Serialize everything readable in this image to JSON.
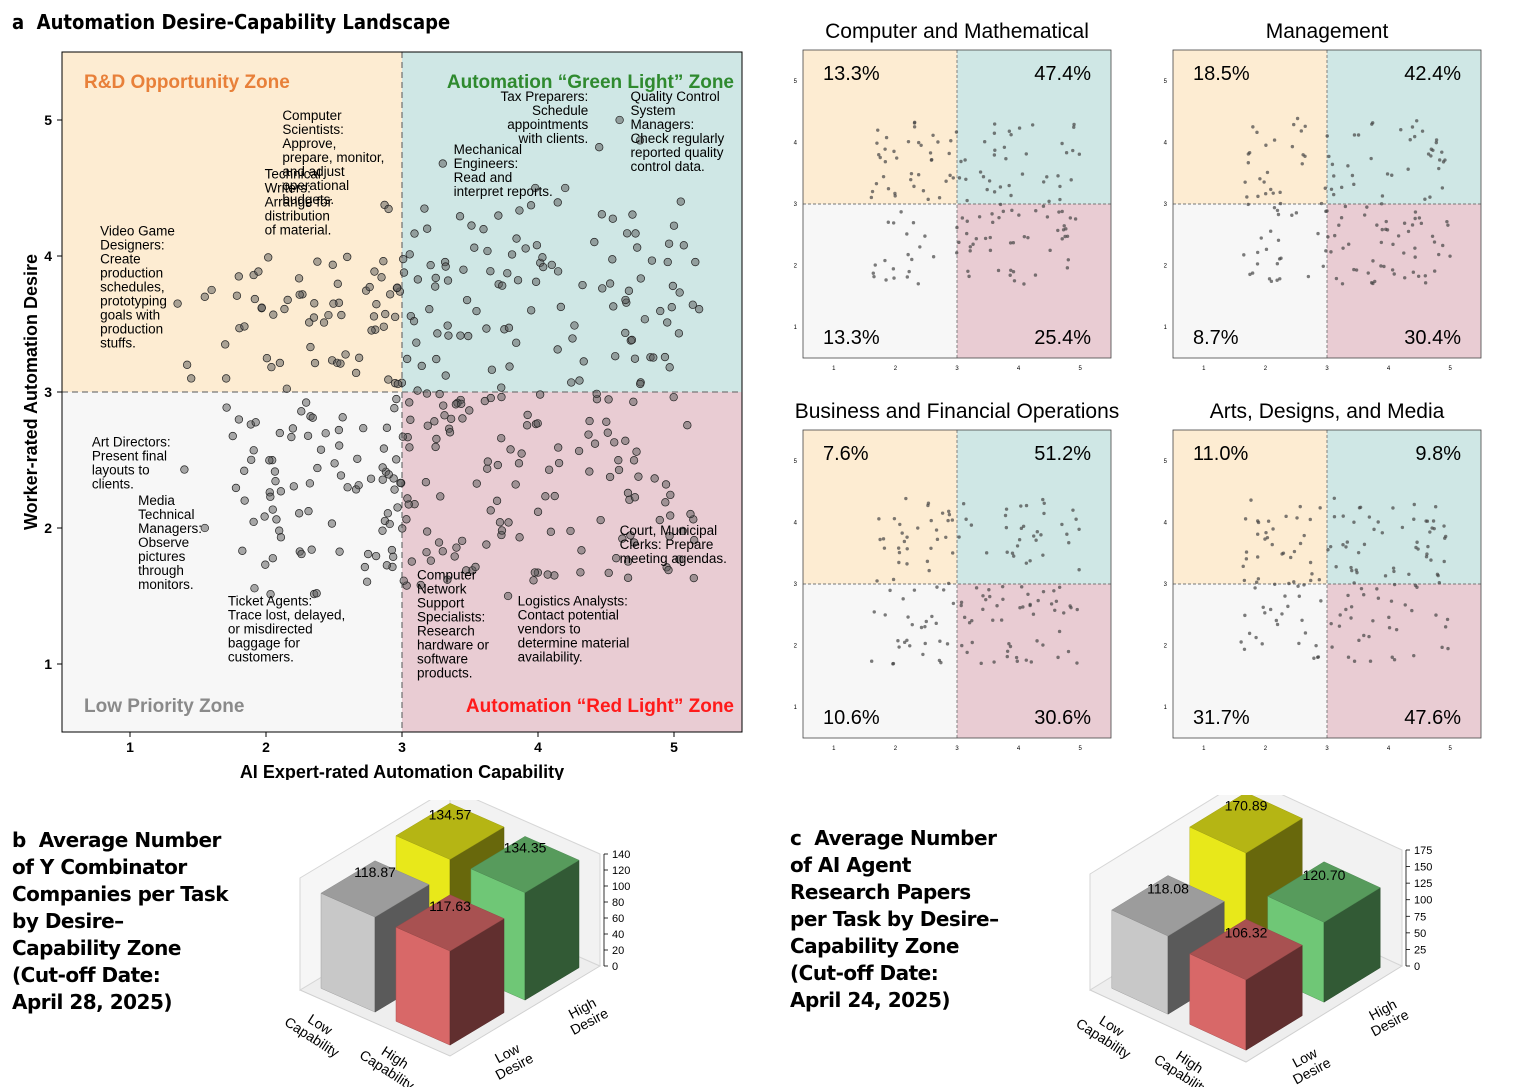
{
  "panel_a": {
    "label": "a",
    "title": "Automation Desire-Capability Landscape"
  },
  "panel_b": {
    "label": "b",
    "title": "Average Number\nof Y Combinator\nCompanies per Task\nby Desire–\nCapability Zone\n(Cut-off Date:\nApril 28, 2025)"
  },
  "panel_c": {
    "label": "c",
    "title": "Average Number\nof AI Agent\nResearch Papers\nper Task by Desire–\nCapability Zone\n(Cut-off Date:\nApril 24, 2025)"
  },
  "colors": {
    "rd_zone": "#fdecd2",
    "green_zone": "#cfe7e5",
    "low_zone": "#f7f7f7",
    "red_zone": "#e9ccd3",
    "rd_text": "#e8803a",
    "green_text": "#2f8a2f",
    "low_text": "#8a8a8a",
    "red_text": "#ff1a1a"
  },
  "chart_data": [
    {
      "type": "scatter",
      "id": "landscape",
      "xlabel": "AI Expert-rated Automation Capability",
      "ylabel": "Worker-rated Automation Desire",
      "xlim": [
        0.5,
        5.5
      ],
      "ylim": [
        0.5,
        5.5
      ],
      "xticks": [
        "1",
        "2",
        "3",
        "4",
        "5"
      ],
      "yticks": [
        "1",
        "2",
        "3",
        "4",
        "5"
      ],
      "threshold": 3,
      "zones": {
        "top_left": "R&D Opportunity Zone",
        "top_right": "Automation “Green Light” Zone",
        "bottom_left": "Low Priority Zone",
        "bottom_right": "Automation “Red Light” Zone"
      },
      "annotations": [
        {
          "text": "Video Game\nDesigners:\nCreate\nproduction\nschedules,\nprototyping\ngoals with\nproduction\nstuffs.",
          "x": 0.78,
          "y": 4.15
        },
        {
          "text": "Technical\nWriters:\nArrange for\ndistribution\nof material.",
          "x": 1.99,
          "y": 4.57
        },
        {
          "text": "Computer\nScientists:\nApprove,\nprepare, monitor,\nand adjust\noperational\nbudgets.",
          "x": 2.12,
          "y": 5.0
        },
        {
          "text": "Mechanical\nEngineers:\nRead and\ninterpret reports.",
          "x": 3.38,
          "y": 4.75
        },
        {
          "text": "Tax Preparers:\nSchedule\nappointments\nwith clients.",
          "x": 4.37,
          "y": 5.14,
          "align": "end"
        },
        {
          "text": "Quality Control\nSystem\nManagers:\nCheck regularly\nreported quality\ncontrol data.",
          "x": 4.68,
          "y": 5.14
        },
        {
          "text": "Art Directors:\nPresent final\nlayouts to\nclients.",
          "x": 0.72,
          "y": 2.6
        },
        {
          "text": "Media\nTechnical\nManagers:\nObserve\npictures\nthrough\nmonitors.",
          "x": 1.06,
          "y": 2.17
        },
        {
          "text": "Ticket Agents:\nTrace lost, delayed,\nor misdirected\nbaggage for\ncustomers.",
          "x": 1.72,
          "y": 1.43
        },
        {
          "text": "Computer\nNetwork\nSupport\nSpecialists:\nResearch\nhardware or\nsoftware\nproducts.",
          "x": 3.11,
          "y": 1.62
        },
        {
          "text": "Logistics Analysts:\nContact potential\nvendors to\ndetermine material\navailability.",
          "x": 3.85,
          "y": 1.43
        },
        {
          "text": "Court, Municipal\nClerks: Prepare\nmeeting agendas.",
          "x": 4.6,
          "y": 1.95
        }
      ]
    },
    {
      "type": "scatter",
      "id": "computer-math",
      "title": "Computer and Mathematical",
      "xticks": [
        "1",
        "2",
        "3",
        "4",
        "5"
      ],
      "yticks": [
        "1",
        "2",
        "3",
        "4",
        "5"
      ],
      "quadrant_percent": {
        "top_left": "13.3%",
        "top_right": "47.4%",
        "bottom_left": "13.3%",
        "bottom_right": "25.4%"
      }
    },
    {
      "type": "scatter",
      "id": "management",
      "title": "Management",
      "xticks": [
        "1",
        "2",
        "3",
        "4",
        "5"
      ],
      "yticks": [
        "1",
        "2",
        "3",
        "4",
        "5"
      ],
      "quadrant_percent": {
        "top_left": "18.5%",
        "top_right": "42.4%",
        "bottom_left": "8.7%",
        "bottom_right": "30.4%"
      }
    },
    {
      "type": "scatter",
      "id": "business-finance",
      "title": "Business and Financial Operations",
      "xticks": [
        "1",
        "2",
        "3",
        "4",
        "5"
      ],
      "yticks": [
        "1",
        "2",
        "3",
        "4",
        "5"
      ],
      "quadrant_percent": {
        "top_left": "7.6%",
        "top_right": "51.2%",
        "bottom_left": "10.6%",
        "bottom_right": "30.6%"
      }
    },
    {
      "type": "scatter",
      "id": "arts-media",
      "title": "Arts, Designs, and Media",
      "xticks": [
        "1",
        "2",
        "3",
        "4",
        "5"
      ],
      "yticks": [
        "1",
        "2",
        "3",
        "4",
        "5"
      ],
      "quadrant_percent": {
        "top_left": "11.0%",
        "top_right": "9.8%",
        "bottom_left": "31.7%",
        "bottom_right": "47.6%"
      }
    },
    {
      "type": "bar",
      "id": "yc-companies",
      "x_categories": [
        "Low\nCapability",
        "High\nCapability"
      ],
      "y_categories": [
        "Low\nDesire",
        "High\nDesire"
      ],
      "zlim": [
        0,
        140
      ],
      "zticks": [
        "0",
        "20",
        "40",
        "60",
        "80",
        "100",
        "120",
        "140"
      ],
      "bars": [
        {
          "x": "Low Capability",
          "y": "Low Desire",
          "value": 118.87,
          "label": "118.87",
          "color": "#c8c8c8"
        },
        {
          "x": "Low Capability",
          "y": "High Desire",
          "value": 134.57,
          "label": "134.57",
          "color": "#e8e81a"
        },
        {
          "x": "High Capability",
          "y": "Low Desire",
          "value": 117.63,
          "label": "117.63",
          "color": "#d86868"
        },
        {
          "x": "High Capability",
          "y": "High Desire",
          "value": 134.35,
          "label": "134.35",
          "color": "#6fc776"
        }
      ]
    },
    {
      "type": "bar",
      "id": "agent-papers",
      "x_categories": [
        "Low\nCapability",
        "High\nCapability"
      ],
      "y_categories": [
        "Low\nDesire",
        "High\nDesire"
      ],
      "zlim": [
        0,
        175
      ],
      "zticks": [
        "0",
        "25",
        "50",
        "75",
        "100",
        "125",
        "150",
        "175"
      ],
      "bars": [
        {
          "x": "Low Capability",
          "y": "Low Desire",
          "value": 118.08,
          "label": "118.08",
          "color": "#c8c8c8"
        },
        {
          "x": "Low Capability",
          "y": "High Desire",
          "value": 170.89,
          "label": "170.89",
          "color": "#e8e81a"
        },
        {
          "x": "High Capability",
          "y": "Low Desire",
          "value": 106.32,
          "label": "106.32",
          "color": "#d86868"
        },
        {
          "x": "High Capability",
          "y": "High Desire",
          "value": 120.7,
          "label": "120.70",
          "color": "#6fc776"
        }
      ]
    }
  ]
}
